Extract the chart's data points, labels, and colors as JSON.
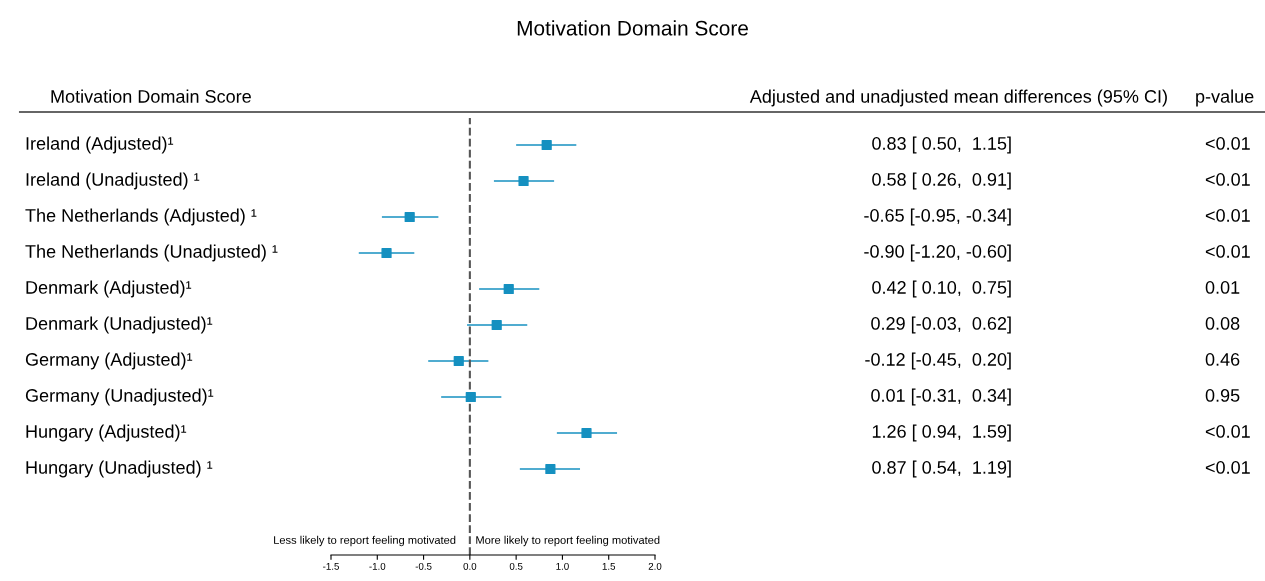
{
  "chart_data": {
    "type": "scatter",
    "orientation": "horizontal",
    "title": "Motivation Domain Score",
    "categories": [
      "Ireland (Adjusted)¹",
      "Ireland (Unadjusted) ¹",
      "The Netherlands (Adjusted) ¹",
      "The Netherlands (Unadjusted) ¹",
      "Denmark (Adjusted)¹",
      "Denmark (Unadjusted)¹",
      "Germany (Adjusted)¹",
      "Germany (Unadjusted)¹",
      "Hungary (Adjusted)¹",
      "Hungary (Unadjusted) ¹"
    ],
    "series": [
      {
        "color": "#1590c0",
        "values": [
          0.83,
          0.58,
          -0.65,
          -0.9,
          0.42,
          0.29,
          -0.12,
          0.01,
          1.26,
          0.87
        ],
        "errors": [
          [
            0.5,
            1.15
          ],
          [
            0.26,
            0.91
          ],
          [
            -0.95,
            -0.34
          ],
          [
            -1.2,
            -0.6
          ],
          [
            0.1,
            0.75
          ],
          [
            -0.03,
            0.62
          ],
          [
            -0.45,
            0.2
          ],
          [
            -0.31,
            0.34
          ],
          [
            0.94,
            1.59
          ],
          [
            0.54,
            1.19
          ]
        ],
        "value_labels": [
          "0.83 [ 0.50,  1.15]",
          "0.58 [ 0.26,  0.91]",
          "-0.65 [-0.95, -0.34]",
          "-0.90 [-1.20, -0.60]",
          "0.42 [ 0.10,  0.75]",
          "0.29 [-0.03,  0.62]",
          "-0.12 [-0.45,  0.20]",
          "0.01 [-0.31,  0.34]",
          "1.26 [ 0.94,  1.59]",
          "0.87 [ 0.54,  1.19]"
        ]
      }
    ],
    "marker": "square",
    "xlim": [
      -1.5,
      2.0
    ],
    "xticks": [
      -1.5,
      {
        "value": -1,
        "label": "-1.0"
      },
      -0.5,
      {
        "value": 0,
        "label": "0.0"
      },
      0.5,
      {
        "value": 1,
        "label": "1.0"
      },
      1.5,
      {
        "value": 2,
        "label": "2.0"
      }
    ],
    "ref_lines": [
      {
        "axis": "x",
        "value": 0,
        "color": "#555555",
        "line_style": "dashed"
      }
    ],
    "annotations": [
      "Motivation Domain Score",
      "Adjusted and unadjusted mean differences (95% CI)",
      "p-value",
      "Less likely to report feeling motivated",
      "More likely to report feeling motivated",
      "<0.01",
      "<0.01",
      "<0.01",
      "<0.01",
      "0.01",
      "0.08",
      "0.46",
      "0.95",
      "<0.01",
      "<0.01"
    ],
    "grid": false
  }
}
